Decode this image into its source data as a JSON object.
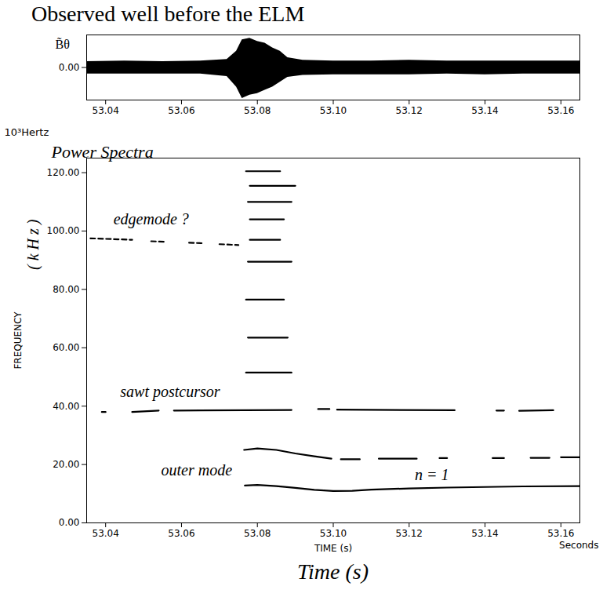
{
  "title": "Observed well before the ELM",
  "chart_data": [
    {
      "type": "area",
      "y_label": "B̃θ",
      "color": "#000000",
      "x": [
        53.035,
        53.045,
        53.055,
        53.065,
        53.072,
        53.0745,
        53.076,
        53.078,
        53.08,
        53.082,
        53.084,
        53.086,
        53.088,
        53.092,
        53.1,
        53.11,
        53.12,
        53.13,
        53.14,
        53.15,
        53.165
      ],
      "upper": [
        0.018,
        0.02,
        0.018,
        0.02,
        0.025,
        0.05,
        0.085,
        0.09,
        0.08,
        0.075,
        0.06,
        0.05,
        0.03,
        0.022,
        0.02,
        0.02,
        0.022,
        0.02,
        0.02,
        0.02,
        0.02
      ],
      "lower": [
        -0.02,
        -0.02,
        -0.02,
        -0.02,
        -0.028,
        -0.06,
        -0.095,
        -0.085,
        -0.08,
        -0.07,
        -0.06,
        -0.045,
        -0.03,
        -0.024,
        -0.022,
        -0.022,
        -0.022,
        -0.02,
        -0.022,
        -0.02,
        -0.02
      ],
      "xlim": [
        53.035,
        53.165
      ],
      "xticks": [
        53.04,
        53.06,
        53.08,
        {
          "value": 53.1,
          "label": "53.10"
        },
        53.12,
        53.14,
        53.16
      ],
      "ylim": [
        -0.1,
        0.1
      ],
      "yticks": [
        {
          "value": 0,
          "label": "0.00"
        }
      ]
    },
    {
      "type": "line",
      "title": "Power Spectra",
      "y_unit": "10³Hertz",
      "y_label": "FREQUENCY",
      "y_label_note": "( k H z )",
      "x_label": "TIME (s)",
      "x_unit": "Seconds",
      "caption": "Time (s)",
      "xlim": [
        53.035,
        53.165
      ],
      "xticks": [
        53.04,
        53.06,
        53.08,
        {
          "value": 53.1,
          "label": "53.10"
        },
        53.12,
        53.14,
        53.16
      ],
      "ylim": [
        0,
        125
      ],
      "yticks": [
        {
          "value": 0,
          "label": "0.00"
        },
        {
          "value": 20,
          "label": "20.00"
        },
        {
          "value": 40,
          "label": "40.00"
        },
        {
          "value": 60,
          "label": "60.00"
        },
        {
          "value": 80,
          "label": "80.00"
        },
        {
          "value": 100,
          "label": "100.00"
        },
        {
          "value": 120,
          "label": "120.00"
        }
      ],
      "series": [
        {
          "color": "#000000",
          "line_style": "dashed",
          "x": [
            53.036,
            53.047,
            53.0475,
            53.052,
            53.056,
            53.0565,
            53.062,
            53.066,
            53.0665,
            53.07,
            53.075
          ],
          "values": [
            97.5,
            97,
            null,
            96.5,
            96.3,
            null,
            96,
            95.8,
            null,
            95.5,
            95.2
          ]
        },
        {
          "color": "#000000",
          "line_style": "solid",
          "x": [
            53.039,
            53.04,
            53.041,
            53.047,
            53.054,
            53.055,
            53.058,
            53.089,
            53.0895,
            53.096,
            53.099,
            53.0995,
            53.101,
            53.132,
            53.133,
            53.143,
            53.145,
            53.146,
            53.149,
            53.158
          ],
          "values": [
            38,
            38,
            null,
            38,
            38.5,
            null,
            38.5,
            38.7,
            null,
            39,
            39,
            null,
            38.8,
            38.6,
            null,
            38.5,
            38.5,
            null,
            38.4,
            38.6
          ]
        },
        {
          "color": "#000000",
          "line_style": "solid",
          "x": [
            53.0767,
            53.08,
            53.085,
            53.09,
            53.095,
            53.1,
            53.105,
            53.11,
            53.12,
            53.13,
            53.14,
            53.15,
            53.165
          ],
          "values": [
            12.8,
            13,
            12.6,
            12,
            11.3,
            10.9,
            11,
            11.4,
            11.8,
            12.1,
            12.3,
            12.5,
            12.6
          ]
        },
        {
          "color": "#000000",
          "line_style": "solid",
          "x": [
            53.0765,
            53.08,
            53.085,
            53.09,
            53.095,
            53.0995,
            53.1,
            53.102,
            53.107,
            53.1075,
            53.112,
            53.122,
            53.1225,
            53.128,
            53.13,
            53.1305,
            53.142,
            53.145,
            53.1455,
            53.152,
            53.157,
            53.1575,
            53.16,
            53.165
          ],
          "values": [
            25,
            25.5,
            25,
            23.8,
            22.8,
            22,
            null,
            21.8,
            21.8,
            null,
            22,
            22,
            null,
            22.2,
            22.2,
            null,
            22.2,
            22.2,
            null,
            22.3,
            22.3,
            null,
            22.5,
            22.5
          ]
        },
        {
          "color": "#000000",
          "line_style": "solid",
          "x": [
            53.077,
            53.089,
            53.089,
            53.0775,
            53.088,
            53.088,
            53.077,
            53.087,
            53.087,
            53.0775,
            53.089,
            53.089,
            53.078,
            53.086,
            53.086,
            53.078,
            53.087,
            53.087,
            53.0775,
            53.089,
            53.089,
            53.078,
            53.09,
            53.09,
            53.077,
            53.086,
            53.086
          ],
          "values": [
            51.5,
            51.5,
            null,
            63.5,
            63.5,
            null,
            76.5,
            76.5,
            null,
            89.5,
            89.5,
            null,
            97,
            97,
            null,
            104,
            104,
            null,
            110,
            110,
            null,
            115.5,
            115.5,
            null,
            120.5,
            120.5,
            null
          ]
        }
      ],
      "annotations": [
        {
          "text": "edgemode ?",
          "x": 53.052,
          "y": 104
        },
        {
          "text": "sawt postcursor",
          "x": 53.057,
          "y": 45
        },
        {
          "text": "outer mode",
          "x": 53.064,
          "y": 18
        },
        {
          "text": "n = 1",
          "x": 53.126,
          "y": 16.5
        }
      ]
    }
  ]
}
